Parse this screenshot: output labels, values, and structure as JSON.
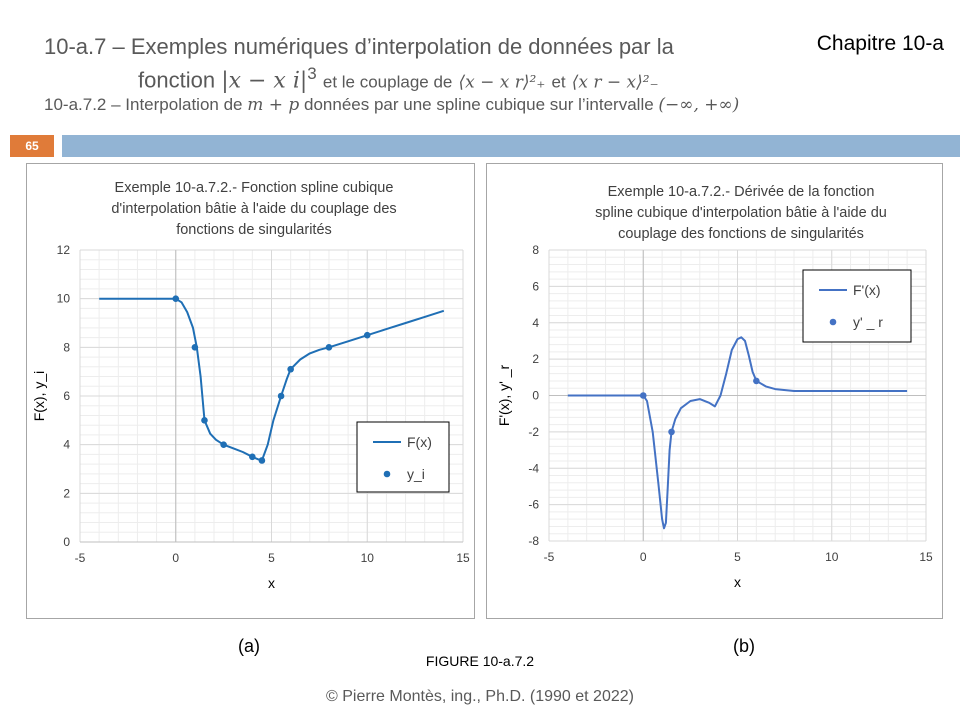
{
  "header": {
    "line1": "10-a.7 – Exemples numériques d’interpolation de données par la",
    "line2_prefix": "fonction",
    "line2_expr1": "|x − x i|",
    "line2_exp": "3",
    "line2_mid": "et le couplage de",
    "line2_expr2": "⟨x − x r⟩²₊",
    "line2_et": "et",
    "line2_expr3": "⟨x r − x⟩²₋",
    "line3_prefix": "10-a.7.2 – Interpolation de",
    "line3_expr": "m + p",
    "line3_mid": "données par une spline cubique sur l’intervalle",
    "line3_interval": "(−∞, +∞)",
    "chapter": "Chapitre 10-a"
  },
  "slide_number": "65",
  "captions": {
    "a": "(a)",
    "b": "(b)",
    "figure": "FIGURE 10-a.7.2"
  },
  "footer": "© Pierre Montès, ing., Ph.D. (1990 et 2022)",
  "colors": {
    "accent_orange": "#e07b39",
    "bar_blue": "#92b4d4",
    "series_a": "#1f6fb5",
    "series_b": "#4472c4"
  },
  "chart_data": [
    {
      "type": "line",
      "title": "Exemple 10-a.7.2.- Fonction spline cubique d'interpolation bâtie à l'aide du couplage des fonctions de singularités",
      "title_lines": [
        "Exemple 10-a.7.2.- Fonction spline cubique",
        "d'interpolation bâtie à l'aide du couplage des",
        "fonctions de singularités"
      ],
      "xlabel": "x",
      "ylabel": "F(x),  y_i",
      "xlim": [
        -5,
        15
      ],
      "ylim": [
        0,
        12
      ],
      "xticks": [
        -5,
        0,
        5,
        10,
        15
      ],
      "yticks": [
        0,
        2,
        4,
        6,
        8,
        10,
        12
      ],
      "grid": true,
      "legend": "right",
      "series": [
        {
          "name": "F(x)",
          "style": "line",
          "x": [
            -4,
            -2,
            -1,
            0,
            0.3,
            0.6,
            0.9,
            1.1,
            1.3,
            1.5,
            1.8,
            2.1,
            2.5,
            3.0,
            3.5,
            4.0,
            4.3,
            4.5,
            4.8,
            5.1,
            5.5,
            5.8,
            6.0,
            6.5,
            7.0,
            7.5,
            8.0,
            9.0,
            10.0,
            11.0,
            12.0,
            13.0,
            14.0
          ],
          "y": [
            10,
            10,
            10,
            10,
            9.85,
            9.45,
            8.8,
            8.0,
            6.8,
            5.0,
            4.45,
            4.2,
            4.0,
            3.85,
            3.7,
            3.5,
            3.4,
            3.35,
            4.0,
            5.0,
            6.0,
            6.7,
            7.1,
            7.5,
            7.75,
            7.9,
            8.0,
            8.25,
            8.5,
            8.75,
            9.0,
            9.25,
            9.5
          ]
        },
        {
          "name": "y_i",
          "style": "markers",
          "x": [
            0,
            1,
            1.5,
            2.5,
            4.0,
            4.5,
            5.5,
            6.0,
            8.0,
            10.0
          ],
          "y": [
            10,
            8,
            5,
            4,
            3.5,
            3.35,
            6,
            7.1,
            8,
            8.5
          ]
        }
      ]
    },
    {
      "type": "line",
      "title": "Exemple 10-a.7.2.- Dérivée de la fonction spline cubique d'interpolation bâtie à l'aide du couplage des fonctions de singularités",
      "title_lines": [
        "Exemple 10-a.7.2.- Dérivée de la fonction",
        "spline cubique d'interpolation bâtie à l'aide du",
        "couplage des fonctions de singularités"
      ],
      "xlabel": "x",
      "ylabel": "F'(x), y' _r",
      "xlim": [
        -5,
        15
      ],
      "ylim": [
        -8,
        8
      ],
      "xticks": [
        -5,
        0,
        5,
        10,
        15
      ],
      "yticks": [
        -8,
        -6,
        -4,
        -2,
        0,
        2,
        4,
        6,
        8
      ],
      "grid": true,
      "legend": "top-right",
      "series": [
        {
          "name": "F'(x)",
          "style": "line",
          "x": [
            -4,
            -2,
            0,
            0.2,
            0.5,
            0.8,
            1.0,
            1.1,
            1.2,
            1.3,
            1.4,
            1.5,
            1.7,
            2.0,
            2.5,
            3.0,
            3.5,
            3.8,
            4.1,
            4.4,
            4.7,
            5.0,
            5.2,
            5.4,
            5.6,
            5.8,
            6.0,
            6.5,
            7.0,
            8.0,
            10.0,
            12.0,
            14.0
          ],
          "y": [
            0,
            0,
            0,
            -0.3,
            -2.0,
            -4.8,
            -6.8,
            -7.3,
            -7.0,
            -5.0,
            -3.0,
            -2.0,
            -1.3,
            -0.7,
            -0.3,
            -0.2,
            -0.4,
            -0.6,
            0.0,
            1.2,
            2.5,
            3.1,
            3.2,
            3.0,
            2.2,
            1.3,
            0.8,
            0.5,
            0.35,
            0.25,
            0.25,
            0.25,
            0.25
          ]
        },
        {
          "name": "y' _ r",
          "style": "markers",
          "x": [
            0,
            1.5,
            6.0
          ],
          "y": [
            0,
            -2,
            0.8
          ]
        }
      ]
    }
  ]
}
